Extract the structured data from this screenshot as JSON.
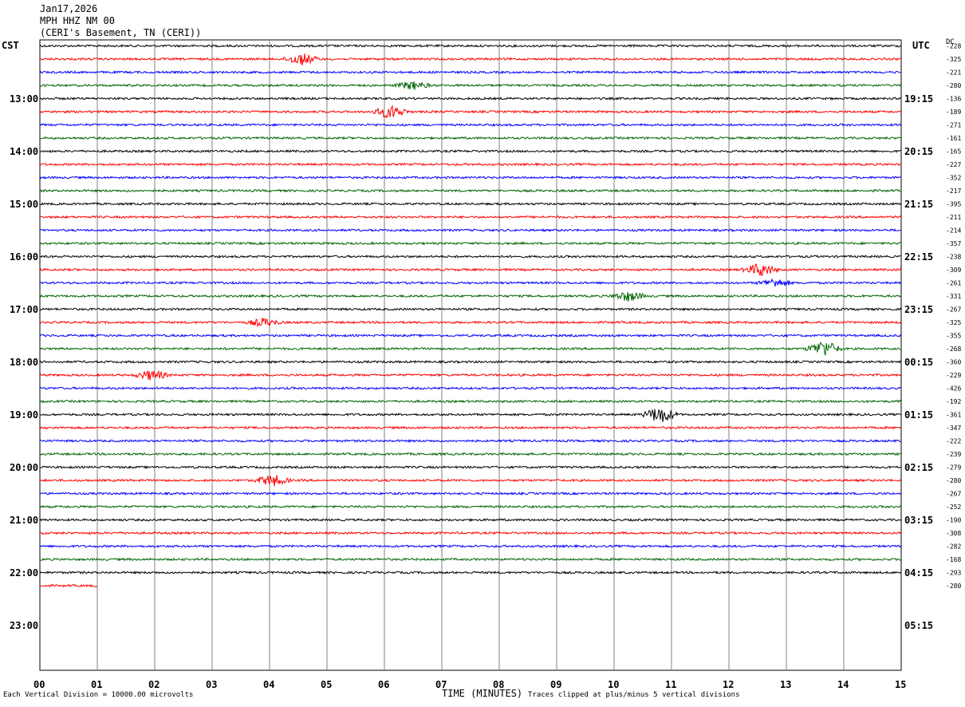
{
  "header": {
    "date": "Jan17,2026",
    "station": "MPH HHZ NM 00",
    "location": "(CERI's Basement, TN (CERI))"
  },
  "left_tz": "CST",
  "right_tz": "UTC",
  "dc_label": "DC",
  "footer": {
    "scale": "Each Vertical Division = 10000.00 microvolts",
    "xlabel": "TIME (MINUTES)",
    "clip": "Traces clipped at plus/minus 5 vertical divisions"
  },
  "colors": {
    "trace_cycle": [
      "#000000",
      "#ff0000",
      "#0000ff",
      "#006400"
    ],
    "grid": "#808080"
  },
  "chart_data": {
    "type": "line",
    "title": "",
    "xlabel": "TIME (MINUTES)",
    "x_range": [
      0,
      15
    ],
    "x_ticks": [
      "00",
      "01",
      "02",
      "03",
      "04",
      "05",
      "06",
      "07",
      "08",
      "09",
      "10",
      "11",
      "12",
      "13",
      "14",
      "15"
    ],
    "left_hour_labels": [
      "13:00",
      "14:00",
      "15:00",
      "16:00",
      "17:00",
      "18:00",
      "19:00",
      "20:00",
      "21:00",
      "22:00",
      "23:00"
    ],
    "right_hour_labels": [
      "19:15",
      "20:15",
      "21:15",
      "22:15",
      "23:15",
      "00:15",
      "01:15",
      "02:15",
      "03:15",
      "04:15",
      "05:15"
    ],
    "dc_offsets": [
      "-228",
      "-325",
      "-221",
      "-280",
      "-136",
      "-189",
      "-271",
      "-161",
      "-165",
      "-227",
      "-352",
      "-217",
      "-395",
      "-211",
      "-214",
      "-357",
      "-238",
      "-309",
      "-261",
      "-331",
      "-267",
      "-325",
      "-355",
      "-268",
      "-360",
      "-229",
      "-426",
      "-192",
      "-361",
      "-347",
      "-222",
      "-239",
      "-279",
      "-280",
      "-267",
      "-252",
      "-190",
      "-308",
      "-282",
      "-168",
      "-293",
      "-280"
    ],
    "trace_count": 42,
    "last_trace_minutes": 1.0,
    "events": [
      {
        "trace": 1,
        "minute": 4.55,
        "amp": 7
      },
      {
        "trace": 3,
        "minute": 6.5,
        "amp": 5
      },
      {
        "trace": 5,
        "minute": 6.1,
        "amp": 8
      },
      {
        "trace": 17,
        "minute": 12.55,
        "amp": 8
      },
      {
        "trace": 18,
        "minute": 12.8,
        "amp": 5
      },
      {
        "trace": 19,
        "minute": 10.25,
        "amp": 6
      },
      {
        "trace": 21,
        "minute": 3.9,
        "amp": 5
      },
      {
        "trace": 23,
        "minute": 13.65,
        "amp": 10
      },
      {
        "trace": 25,
        "minute": 1.95,
        "amp": 6
      },
      {
        "trace": 28,
        "minute": 10.8,
        "amp": 10
      },
      {
        "trace": 33,
        "minute": 4.05,
        "amp": 7
      }
    ]
  }
}
